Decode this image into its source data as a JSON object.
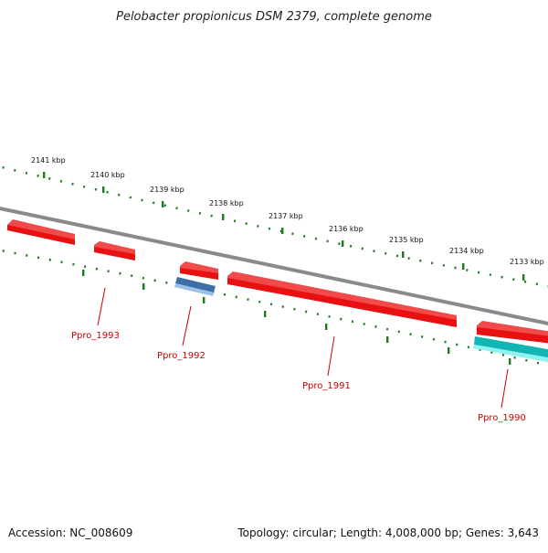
{
  "title": "Pelobacter propionicus DSM 2379, complete genome",
  "footer": {
    "accession": "Accession: NC_008609",
    "summary": "Topology: circular; Length: 4,008,000 bp; Genes: 3,643"
  },
  "colors": {
    "backbone": "#8a8a8a",
    "tick": "#1e7a1e",
    "forward_gene": "#ee1111",
    "reverse_gene_a": "#4a7fb5",
    "reverse_gene_b": "#18c8c8",
    "gene_label": "#cc0000"
  },
  "ruler": {
    "labels": [
      "2141 kbp",
      "2140 kbp",
      "2139 kbp",
      "2138 kbp",
      "2137 kbp",
      "2136 kbp",
      "2135 kbp",
      "2134 kbp",
      "2133 kbp"
    ]
  },
  "gene_labels": [
    {
      "text": "Ppro_1993"
    },
    {
      "text": "Ppro_1992"
    },
    {
      "text": "Ppro_1991"
    },
    {
      "text": "Ppro_1990"
    }
  ]
}
